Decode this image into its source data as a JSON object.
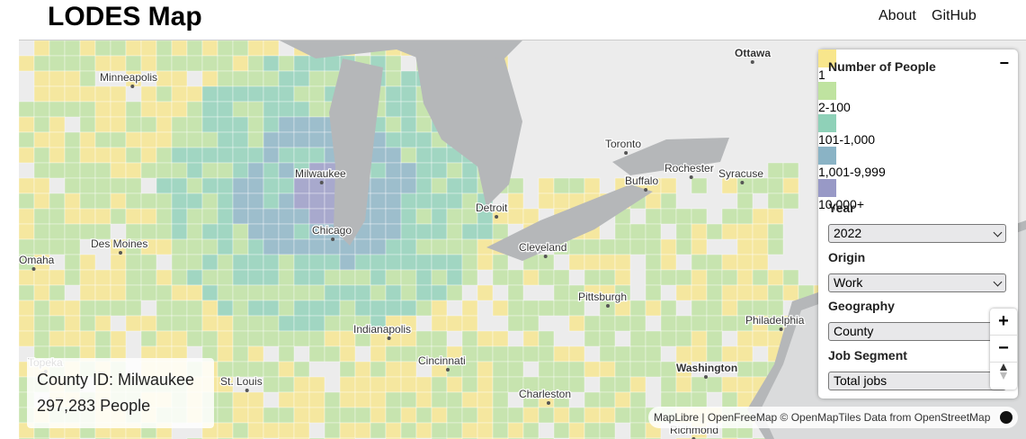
{
  "header": {
    "title": "LODES Map",
    "nav": [
      "About",
      "GitHub"
    ]
  },
  "legend": {
    "title": "Number of People",
    "collapse": "−",
    "items": [
      {
        "label": "1",
        "color": "#f8e68c"
      },
      {
        "label": "2-100",
        "color": "#bfe3a0"
      },
      {
        "label": "101-1,000",
        "color": "#8fd1b8"
      },
      {
        "label": "1,001-9,999",
        "color": "#8ab3c5"
      },
      {
        "label": "10,000+",
        "color": "#9899c6"
      }
    ]
  },
  "controls": [
    {
      "label": "Year",
      "value": "2022"
    },
    {
      "label": "Origin",
      "value": "Work"
    },
    {
      "label": "Geography",
      "value": "County"
    },
    {
      "label": "Job Segment",
      "value": "Total jobs"
    }
  ],
  "zoom": {
    "in": "+",
    "out": "−"
  },
  "info": {
    "county": "County ID: Milwaukee",
    "people": "297,283 People"
  },
  "map_labels": [
    "Minneapolis",
    "Ottawa",
    "Toronto",
    "Rochester",
    "Syracuse",
    "Buffalo",
    "Milwaukee",
    "Detroit",
    "Chicago",
    "Des Moines",
    "Omaha",
    "Cleveland",
    "Pittsburgh",
    "Philadelphia",
    "Indianapolis",
    "Cincinnati",
    "Washington",
    "St. Louis",
    "Charleston",
    "Richmond",
    "Topeka"
  ],
  "attribution": [
    "MapLibre",
    "OpenFreeMap",
    "© OpenMapTiles",
    "Data from",
    "OpenStreetMap"
  ]
}
